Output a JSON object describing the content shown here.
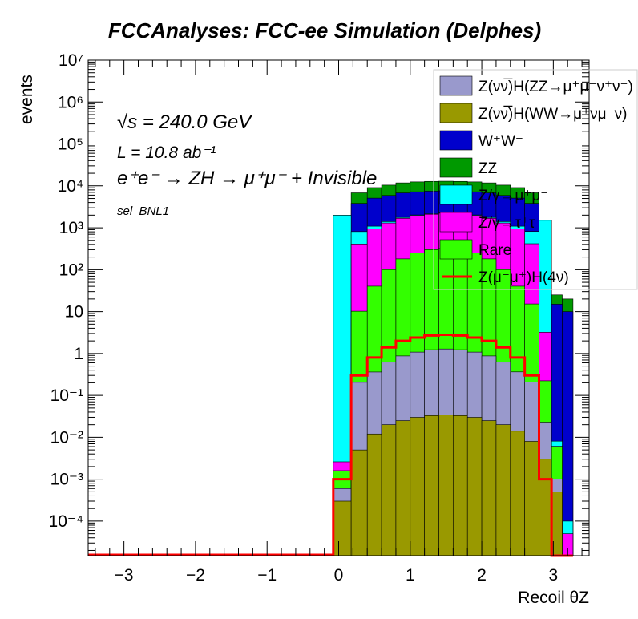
{
  "title": "FCCAnalyses: FCC-ee Simulation (Delphes)",
  "annotations": {
    "sqrt_s_label": "√s = 240.0 GeV",
    "lumi_label": "L = 10.8 ab⁻¹",
    "process_label": "e⁺e⁻ → ZH → μ⁺μ⁻ + Invisible",
    "selection_label": "sel_BNL1"
  },
  "chart_data": {
    "type": "area",
    "stacked": true,
    "title": "FCCAnalyses: FCC-ee Simulation (Delphes)",
    "xlabel": "Recoil θZ",
    "ylabel": "events",
    "xlim": [
      -3.5,
      3.5
    ],
    "ylim": [
      1.5e-05,
      10000000
    ],
    "yscale": "log",
    "grid": false,
    "legend_position": "top-right",
    "x_ticks": [
      "−3",
      "−2",
      "−1",
      "0",
      "1",
      "2",
      "3"
    ],
    "y_ticks": [
      "10⁻⁴",
      "10⁻³",
      "10⁻²",
      "10⁻¹",
      "1",
      "10",
      "10²",
      "10³",
      "10⁴",
      "10⁵",
      "10⁶",
      "10⁷"
    ],
    "x": [
      0.05,
      0.3,
      0.5,
      0.7,
      0.9,
      1.1,
      1.3,
      1.5,
      1.7,
      1.9,
      2.1,
      2.3,
      2.5,
      2.7,
      2.9,
      3.05,
      3.2
    ],
    "series": [
      {
        "name": "Z(νν̅)H(WW→μ⁺νμ⁻ν)",
        "color": "#999900",
        "values": [
          0.0003,
          0.005,
          0.012,
          0.02,
          0.025,
          0.03,
          0.033,
          0.034,
          0.033,
          0.03,
          0.025,
          0.02,
          0.014,
          0.008,
          0.003,
          0.0005,
          0
        ]
      },
      {
        "name": "Z(νν̅)H(ZZ→μ⁺μ⁻ν⁺ν⁻)",
        "color": "#9999cc",
        "values": [
          0.0003,
          0.2,
          0.35,
          0.6,
          0.85,
          1.05,
          1.2,
          1.25,
          1.2,
          1.05,
          0.85,
          0.6,
          0.35,
          0.2,
          0.02,
          0.0005,
          0
        ]
      },
      {
        "name": "Rare",
        "color": "#33ff00",
        "values": [
          0.001,
          10,
          40,
          100,
          180,
          250,
          300,
          320,
          300,
          250,
          180,
          100,
          40,
          15,
          0.2,
          0.005,
          0
        ]
      },
      {
        "name": "Z/γ→τ⁺τ⁻",
        "color": "#ff00ff",
        "values": [
          0.001,
          400,
          900,
          1200,
          1500,
          1700,
          1800,
          1900,
          1800,
          1700,
          1500,
          1200,
          900,
          400,
          3,
          0.0001,
          5e-05
        ]
      },
      {
        "name": "Z/γ→μ⁺μ⁻",
        "color": "#00ffff",
        "values": [
          2000,
          400,
          150,
          100,
          80,
          70,
          60,
          60,
          60,
          70,
          80,
          100,
          150,
          400,
          1500,
          0.002,
          5e-05
        ]
      },
      {
        "name": "W⁺W⁻",
        "color": "#0000cc",
        "values": [
          0.001,
          3000,
          4000,
          4500,
          5000,
          5200,
          5300,
          5300,
          5300,
          5200,
          5000,
          4500,
          4000,
          3000,
          2,
          15,
          10
        ]
      },
      {
        "name": "ZZ",
        "color": "#009900",
        "values": [
          0.001,
          3000,
          4000,
          4500,
          5000,
          5200,
          5300,
          5300,
          5300,
          5200,
          5000,
          4500,
          4000,
          3000,
          2,
          10,
          10
        ]
      }
    ],
    "signal_line": {
      "name": "Z(μ⁻μ⁺)H(4ν)",
      "color": "#ff0000",
      "values": [
        0.001,
        0.3,
        0.8,
        1.4,
        2.0,
        2.4,
        2.7,
        2.8,
        2.7,
        2.4,
        2.0,
        1.4,
        0.8,
        0.3,
        0.001,
        0,
        0
      ]
    }
  },
  "legend": {
    "entries": [
      {
        "label": "Z(νν̅)H(ZZ→μ⁺μ⁻ν⁺ν⁻)",
        "color": "#9999cc",
        "kind": "box"
      },
      {
        "label": "Z(νν̅)H(WW→μ⁺νμ⁻ν)",
        "color": "#999900",
        "kind": "box"
      },
      {
        "label": "W⁺W⁻",
        "color": "#0000cc",
        "kind": "box"
      },
      {
        "label": "ZZ",
        "color": "#009900",
        "kind": "box"
      },
      {
        "label": "Z/γ→μ⁺μ⁻",
        "color": "#00ffff",
        "kind": "box"
      },
      {
        "label": "Z/γ→τ⁺τ⁻",
        "color": "#ff00ff",
        "kind": "box"
      },
      {
        "label": "Rare",
        "color": "#33ff00",
        "kind": "box"
      },
      {
        "label": "Z(μ⁻μ⁺)H(4ν)",
        "color": "#ff0000",
        "kind": "line"
      }
    ]
  }
}
